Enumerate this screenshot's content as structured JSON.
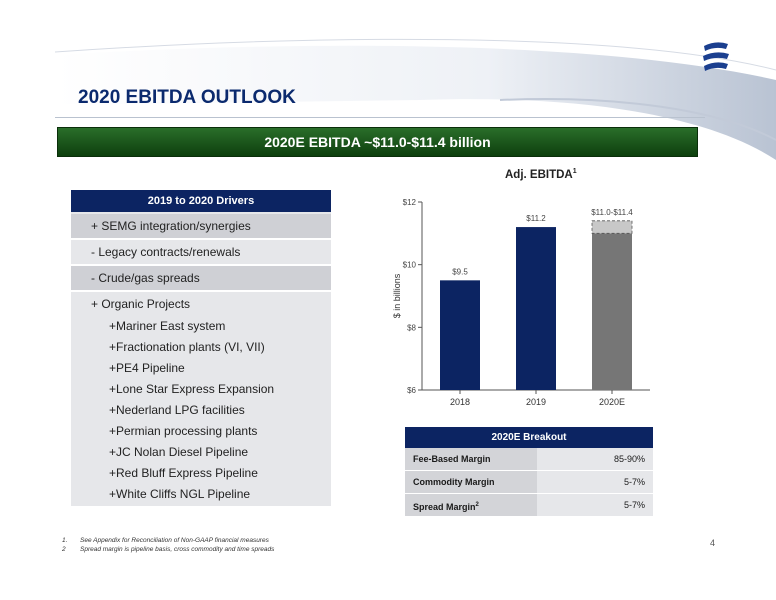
{
  "header": {
    "title": "2020 EBITDA OUTLOOK",
    "banner": "2020E EBITDA ~$11.0-$11.4 billion"
  },
  "drivers": {
    "heading": "2019 to 2020 Drivers",
    "items": [
      "+ SEMG integration/synergies",
      "- Legacy contracts/renewals",
      "- Crude/gas spreads",
      "+ Organic Projects"
    ],
    "projects": [
      "+Mariner East system",
      "+Fractionation plants (VI, VII)",
      "+PE4 Pipeline",
      "+Lone Star Express Expansion",
      "+Nederland LPG facilities",
      "+Permian processing plants",
      "+JC Nolan Diesel Pipeline",
      "+Red Bluff Express Pipeline",
      "+White Cliffs NGL Pipeline"
    ]
  },
  "chart_data": {
    "type": "bar",
    "title": "Adj. EBITDA",
    "title_sup": "1",
    "ylabel": "$ in billions",
    "categories": [
      "2018",
      "2019",
      "2020E"
    ],
    "values": [
      9.5,
      11.2,
      11.0
    ],
    "range_top": 11.4,
    "data_labels": [
      "$9.5",
      "$11.2",
      "$11.0-$11.4"
    ],
    "ylim": [
      6,
      12
    ],
    "yticks": [
      6,
      8,
      10,
      12
    ],
    "ytick_labels": [
      "$6",
      "$8",
      "$10",
      "$12"
    ],
    "colors": [
      "#0c2462",
      "#0c2462",
      "#767676"
    ],
    "range_color": "#c8c8c8",
    "grid": false
  },
  "breakout": {
    "heading": "2020E Breakout",
    "rows": [
      {
        "label": "Fee-Based Margin",
        "value": "85-90%"
      },
      {
        "label": "Commodity Margin",
        "value": "5-7%"
      },
      {
        "label": "Spread Margin",
        "sup": "2",
        "value": "5-7%"
      }
    ]
  },
  "footnotes": [
    {
      "num": "1.",
      "text": "See Appendix for Reconciliation of Non-GAAP financial measures"
    },
    {
      "num": "2",
      "text": "Spread margin is pipeline basis, cross commodity and time spreads"
    }
  ],
  "page_number": "4",
  "colors": {
    "navy": "#0c2462",
    "green": "#1f5e1f",
    "gray_bar": "#767676"
  }
}
